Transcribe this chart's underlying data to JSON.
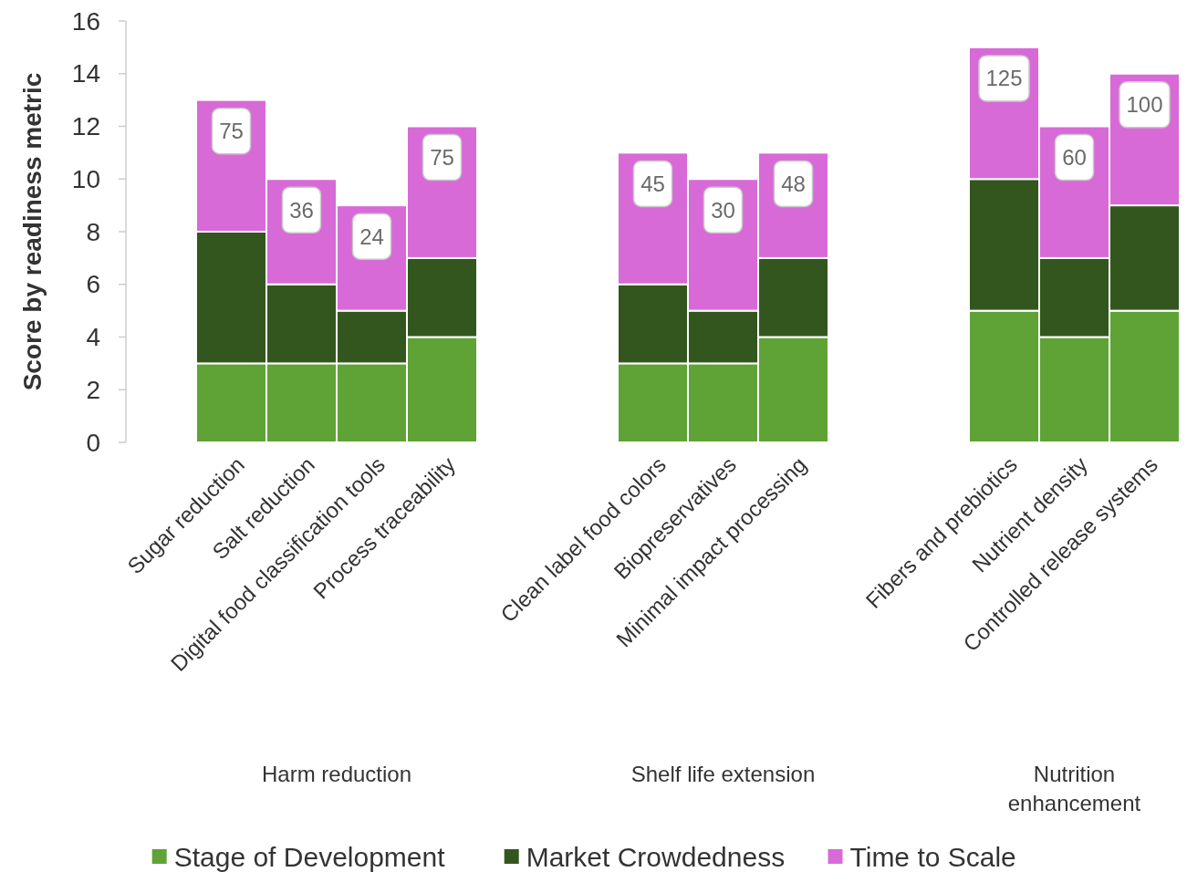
{
  "chart_data": {
    "type": "bar",
    "stacked": true,
    "ylabel": "Score by readiness metric",
    "categories": [
      "Sugar reduction",
      "Salt reduction",
      "Digital food classification tools",
      "Process traceability",
      null,
      null,
      "Clean label food colors",
      "Biopreservatives",
      "Minimal impact processing",
      null,
      null,
      "Fibers and prebiotics",
      "Nutrient density",
      "Controlled release systems"
    ],
    "series": [
      {
        "name": "Stage of Development",
        "color": "#5fa336",
        "values": [
          3,
          3,
          3,
          4,
          null,
          null,
          3,
          3,
          4,
          null,
          null,
          5,
          4,
          5
        ]
      },
      {
        "name": "Market Crowdedness",
        "color": "#33561f",
        "values": [
          5,
          3,
          2,
          3,
          null,
          null,
          3,
          2,
          3,
          null,
          null,
          5,
          3,
          4
        ]
      },
      {
        "name": "Time to Scale",
        "color": "#d86ad8",
        "values": [
          5,
          4,
          4,
          5,
          null,
          null,
          5,
          5,
          4,
          null,
          null,
          5,
          5,
          5
        ]
      }
    ],
    "annotations": [
      "Harm reduction",
      "Shelf life extension",
      "Nutrition enhancement",
      {
        "text": "75",
        "x": "Sugar reduction",
        "y": 13
      },
      {
        "text": "36",
        "x": "Salt reduction",
        "y": 10
      },
      {
        "text": "24",
        "x": "Digital food classification tools",
        "y": 9
      },
      {
        "text": "75",
        "x": "Process traceability",
        "y": 12
      },
      {
        "text": "45",
        "x": "Clean label food colors",
        "y": 11
      },
      {
        "text": "30",
        "x": "Biopreservatives",
        "y": 10
      },
      {
        "text": "48",
        "x": "Minimal impact processing",
        "y": 11
      },
      {
        "text": "125",
        "x": "Fibers and prebiotics",
        "y": 15
      },
      {
        "text": "60",
        "x": "Nutrient density",
        "y": 12
      },
      {
        "text": "100",
        "x": "Controlled release systems",
        "y": 14
      }
    ],
    "ylim": [
      0,
      16
    ],
    "yticks": [
      0,
      2,
      4,
      6,
      8,
      10,
      12,
      14,
      16
    ],
    "grid": false,
    "legend": "bottom"
  }
}
